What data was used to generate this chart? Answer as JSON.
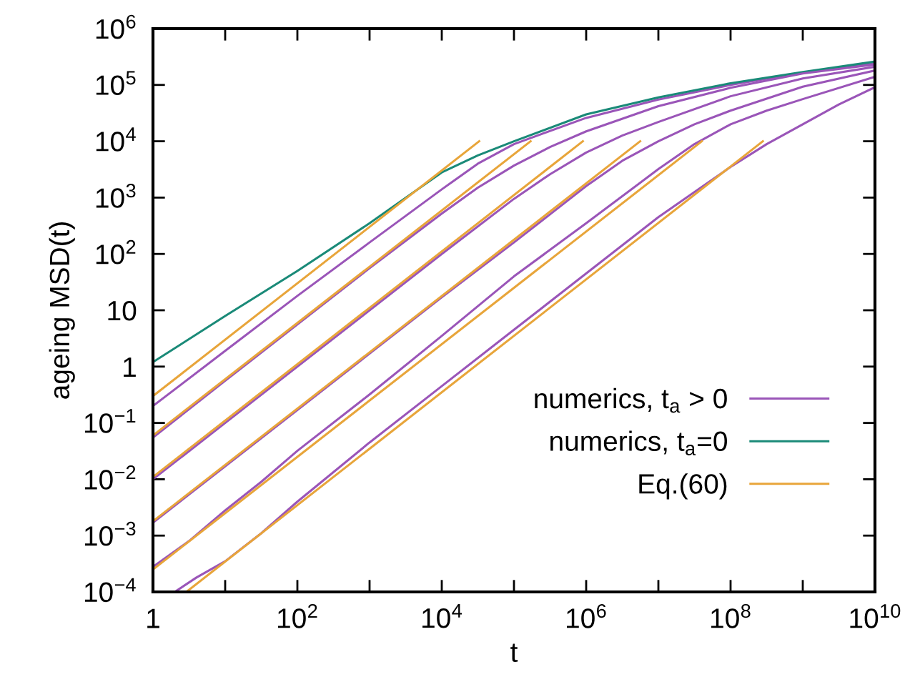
{
  "chart_data": {
    "type": "line",
    "xlabel": "t",
    "ylabel": "ageing MSD(t)",
    "log": "xy",
    "grid": false,
    "legend": "bottom right",
    "marker": "none",
    "line_style": "solid",
    "xlim": [
      1,
      10000000000.0
    ],
    "ylim": [
      0.0001,
      1000000.0
    ],
    "xticks": [
      {
        "value": 1,
        "label": "1"
      },
      {
        "value": 10,
        "label": null
      },
      {
        "value": 100,
        "label": "10$^{2}$"
      },
      {
        "value": 1000,
        "label": null
      },
      {
        "value": 10000.0,
        "label": "10$^{4}$"
      },
      {
        "value": 100000.0,
        "label": null
      },
      {
        "value": 1000000.0,
        "label": "10$^{6}$"
      },
      {
        "value": 10000000.0,
        "label": null
      },
      {
        "value": 100000000.0,
        "label": "10$^{8}$"
      },
      {
        "value": 1000000000.0,
        "label": null
      },
      {
        "value": 10000000000.0,
        "label": "10$^{10}$"
      }
    ],
    "yticks": [
      {
        "value": 0.0001,
        "label": "10$^{−4}$"
      },
      {
        "value": 0.001,
        "label": "10$^{−3}$"
      },
      {
        "value": 0.01,
        "label": "10$^{−2}$"
      },
      {
        "value": 0.1,
        "label": "10$^{−1}$"
      },
      {
        "value": 1,
        "label": "1"
      },
      {
        "value": 10,
        "label": "10"
      },
      {
        "value": 100,
        "label": "10$^{2}$"
      },
      {
        "value": 1000,
        "label": "10$^{3}$"
      },
      {
        "value": 10000.0,
        "label": "10$^{4}$"
      },
      {
        "value": 100000.0,
        "label": "10$^{5}$"
      },
      {
        "value": 1000000.0,
        "label": "10$^{6}$"
      }
    ],
    "series": [
      {
        "name": "numerics, t$_{a}$ > 0",
        "color": "#9a55b8",
        "x": [
          1,
          10,
          100,
          1000,
          10000.0,
          31600.0,
          100000.0,
          1000000.0,
          10000000.0,
          100000000.0,
          1000000000.0,
          10000000000.0
        ],
        "values": [
          0.2,
          1.9,
          18,
          160,
          1400,
          4000,
          8900,
          26000,
          55000,
          100000,
          166000,
          240000
        ]
      },
      {
        "name": "numerics, t$_{a}$=0",
        "color": "#1a8a78",
        "x": [
          1,
          10,
          100,
          1000,
          10000.0,
          31600.0,
          100000.0,
          1000000.0,
          10000000.0,
          100000000.0,
          1000000000.0,
          10000000000.0
        ],
        "values": [
          1.2,
          7.9,
          50,
          350,
          2800,
          5600,
          10000,
          30000,
          60000,
          107000,
          170000,
          260000
        ]
      },
      {
        "name": "Eq.(60)",
        "color": "#e8a53a",
        "x": [
          1,
          33000
        ],
        "values": [
          0.3,
          10000
        ]
      },
      {
        "color": "#9a55b8",
        "x": [
          1,
          10,
          100,
          1000,
          10000.0,
          31600.0,
          100000.0,
          316000.0,
          1000000.0,
          10000000.0,
          100000000.0,
          1000000000.0,
          10000000000.0
        ],
        "values": [
          0.055,
          0.56,
          5.6,
          56,
          520,
          1500,
          3700,
          7900,
          15000,
          42000,
          89000,
          160000,
          230000
        ]
      },
      {
        "color": "#9a55b8",
        "x": [
          1,
          10,
          100,
          1000,
          10000.0,
          100000.0,
          316000.0,
          1000000.0,
          3160000.0,
          10000000.0,
          100000000.0,
          1000000000.0,
          10000000000.0
        ],
        "values": [
          0.01,
          0.1,
          1,
          10,
          100,
          950,
          2600,
          6300,
          12600,
          22000,
          63000,
          130000,
          210000
        ]
      },
      {
        "color": "#9a55b8",
        "x": [
          1,
          10,
          100,
          1000,
          10000.0,
          100000.0,
          1000000.0,
          3160000.0,
          10000000.0,
          31600000.0,
          100000000.0,
          1000000000.0,
          10000000000.0
        ],
        "values": [
          0.0017,
          0.017,
          0.17,
          1.7,
          17,
          160,
          1600,
          4500,
          10000,
          20000,
          35000,
          93000,
          180000
        ]
      },
      {
        "color": "#9a55b8",
        "x": [
          1,
          3.16,
          10,
          31.6,
          100,
          1000,
          10000.0,
          100000.0,
          1000000.0,
          10000000.0,
          31600000.0,
          100000000.0,
          316000000.0,
          1000000000.0,
          10000000000.0
        ],
        "values": [
          0.00028,
          0.0008,
          0.0028,
          0.009,
          0.032,
          0.32,
          3.5,
          40,
          350,
          3200,
          8900,
          20000,
          35000,
          56000,
          140000
        ]
      },
      {
        "color": "#9a55b8",
        "x": [
          2,
          4,
          10,
          31.6,
          100,
          1000,
          10000.0,
          100000.0,
          1000000.0,
          10000000.0,
          100000000.0,
          316000000.0,
          1000000000.0,
          3160000000.0,
          10000000000.0
        ],
        "values": [
          0.0001,
          0.00018,
          0.00035,
          0.0011,
          0.004,
          0.045,
          0.45,
          4.5,
          45,
          450,
          3500,
          8900,
          20000,
          45000,
          91000
        ]
      },
      {
        "color": "#e8a53a",
        "x": [
          1,
          170000
        ],
        "values": [
          0.06,
          10000
        ]
      },
      {
        "color": "#e8a53a",
        "x": [
          1,
          900000
        ],
        "values": [
          0.011,
          10000
        ]
      },
      {
        "color": "#e8a53a",
        "x": [
          1,
          5600000
        ],
        "values": [
          0.0018,
          10000
        ]
      },
      {
        "color": "#e8a53a",
        "x": [
          1,
          40000000
        ],
        "values": [
          0.00025,
          10000
        ]
      },
      {
        "color": "#e8a53a",
        "x": [
          2.9,
          280000000
        ],
        "values": [
          0.0001,
          10000
        ]
      }
    ]
  }
}
